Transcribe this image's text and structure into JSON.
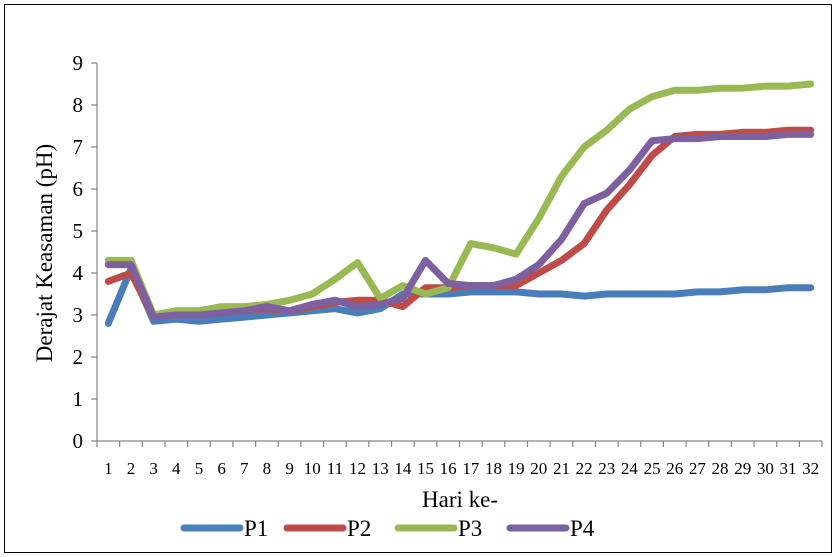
{
  "chart_data": {
    "type": "line",
    "title": "",
    "xlabel": "Hari ke-",
    "ylabel": "Derajat Keasaman (pH)",
    "ylim": [
      0,
      9
    ],
    "yticks": [
      "0",
      "1",
      "2",
      "3",
      "4",
      "5",
      "6",
      "7",
      "8",
      "9"
    ],
    "categories": [
      "1",
      "2",
      "3",
      "4",
      "5",
      "6",
      "7",
      "8",
      "9",
      "10",
      "11",
      "12",
      "13",
      "14",
      "15",
      "16",
      "17",
      "18",
      "19",
      "20",
      "21",
      "22",
      "23",
      "24",
      "25",
      "26",
      "27",
      "28",
      "29",
      "30",
      "31",
      "32"
    ],
    "grid": false,
    "legend": "bottom",
    "series": [
      {
        "name": "P1",
        "color": "#4a7ebb",
        "values": [
          2.8,
          4.1,
          2.85,
          2.9,
          2.85,
          2.9,
          2.95,
          3.0,
          3.05,
          3.1,
          3.15,
          3.05,
          3.15,
          3.5,
          3.5,
          3.5,
          3.55,
          3.55,
          3.55,
          3.5,
          3.5,
          3.45,
          3.5,
          3.5,
          3.5,
          3.5,
          3.55,
          3.55,
          3.6,
          3.6,
          3.65,
          3.65
        ]
      },
      {
        "name": "P2",
        "color": "#be4b48",
        "values": [
          3.8,
          4.0,
          2.95,
          3.0,
          3.05,
          3.05,
          3.1,
          3.15,
          3.1,
          3.2,
          3.3,
          3.35,
          3.35,
          3.2,
          3.65,
          3.65,
          3.7,
          3.7,
          3.7,
          4.0,
          4.3,
          4.7,
          5.5,
          6.1,
          6.8,
          7.25,
          7.3,
          7.3,
          7.35,
          7.35,
          7.4,
          7.4
        ]
      },
      {
        "name": "P3",
        "color": "#98b954",
        "values": [
          4.3,
          4.3,
          3.0,
          3.1,
          3.1,
          3.2,
          3.2,
          3.25,
          3.35,
          3.5,
          3.85,
          4.25,
          3.4,
          3.7,
          3.5,
          3.65,
          4.7,
          4.6,
          4.45,
          5.3,
          6.3,
          7.0,
          7.4,
          7.9,
          8.2,
          8.35,
          8.35,
          8.4,
          8.4,
          8.45,
          8.45,
          8.5
        ]
      },
      {
        "name": "P4",
        "color": "#7d60a0",
        "values": [
          4.2,
          4.2,
          2.95,
          3.0,
          3.0,
          3.05,
          3.1,
          3.2,
          3.1,
          3.25,
          3.35,
          3.2,
          3.25,
          3.4,
          4.3,
          3.75,
          3.7,
          3.7,
          3.85,
          4.2,
          4.8,
          5.65,
          5.9,
          6.45,
          7.15,
          7.2,
          7.2,
          7.25,
          7.25,
          7.25,
          7.3,
          7.3
        ]
      }
    ]
  }
}
